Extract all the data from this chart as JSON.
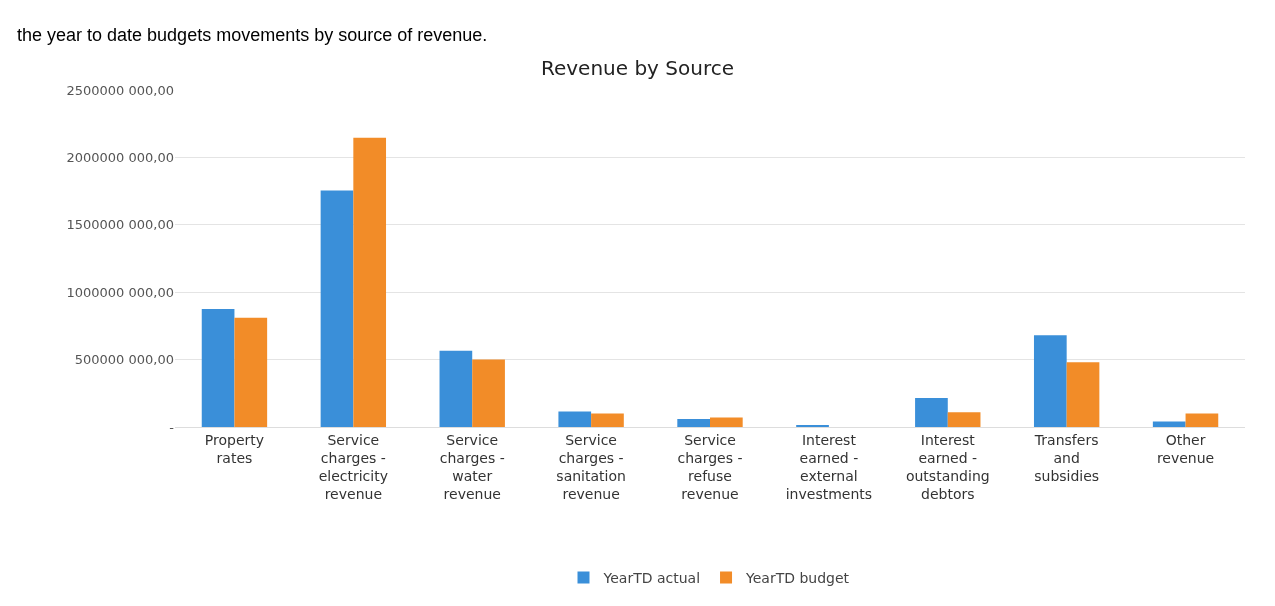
{
  "chart_data": {
    "type": "bar",
    "title": "Revenue by Source",
    "annotations": [
      "the year to date budgets movements by source of revenue."
    ],
    "categories": [
      "Property rates",
      "Service charges - electricity revenue",
      "Service charges - water revenue",
      "Service charges - sanitation revenue",
      "Service charges - refuse revenue",
      "Interest earned - external investments",
      "Interest earned - outstanding debtors",
      "Transfers and subsidies",
      "Other revenue"
    ],
    "series": [
      {
        "name": "YearTD actual",
        "color": "#3a8fd9",
        "values": [
          875000000,
          1755000000,
          565000000,
          115000000,
          60000000,
          10000000,
          215000000,
          680000000,
          40000000
        ]
      },
      {
        "name": "YearTD budget",
        "color": "#f28c28",
        "values": [
          810000000,
          2145000000,
          500000000,
          100000000,
          70000000,
          0,
          110000000,
          480000000,
          100000000
        ]
      }
    ],
    "ylim": [
      0,
      2500000000
    ],
    "yticks": [
      {
        "value": 0,
        "label": "-"
      },
      {
        "value": 500000000,
        "label": "500000 000,00"
      },
      {
        "value": 1000000000,
        "label": "1000000 000,00"
      },
      {
        "value": 1500000000,
        "label": "1500000 000,00"
      },
      {
        "value": 2000000000,
        "label": "2000000 000,00"
      },
      {
        "value": 2500000000,
        "label": "2500000 000,00"
      }
    ],
    "grid": "y",
    "legend": "bottom"
  }
}
